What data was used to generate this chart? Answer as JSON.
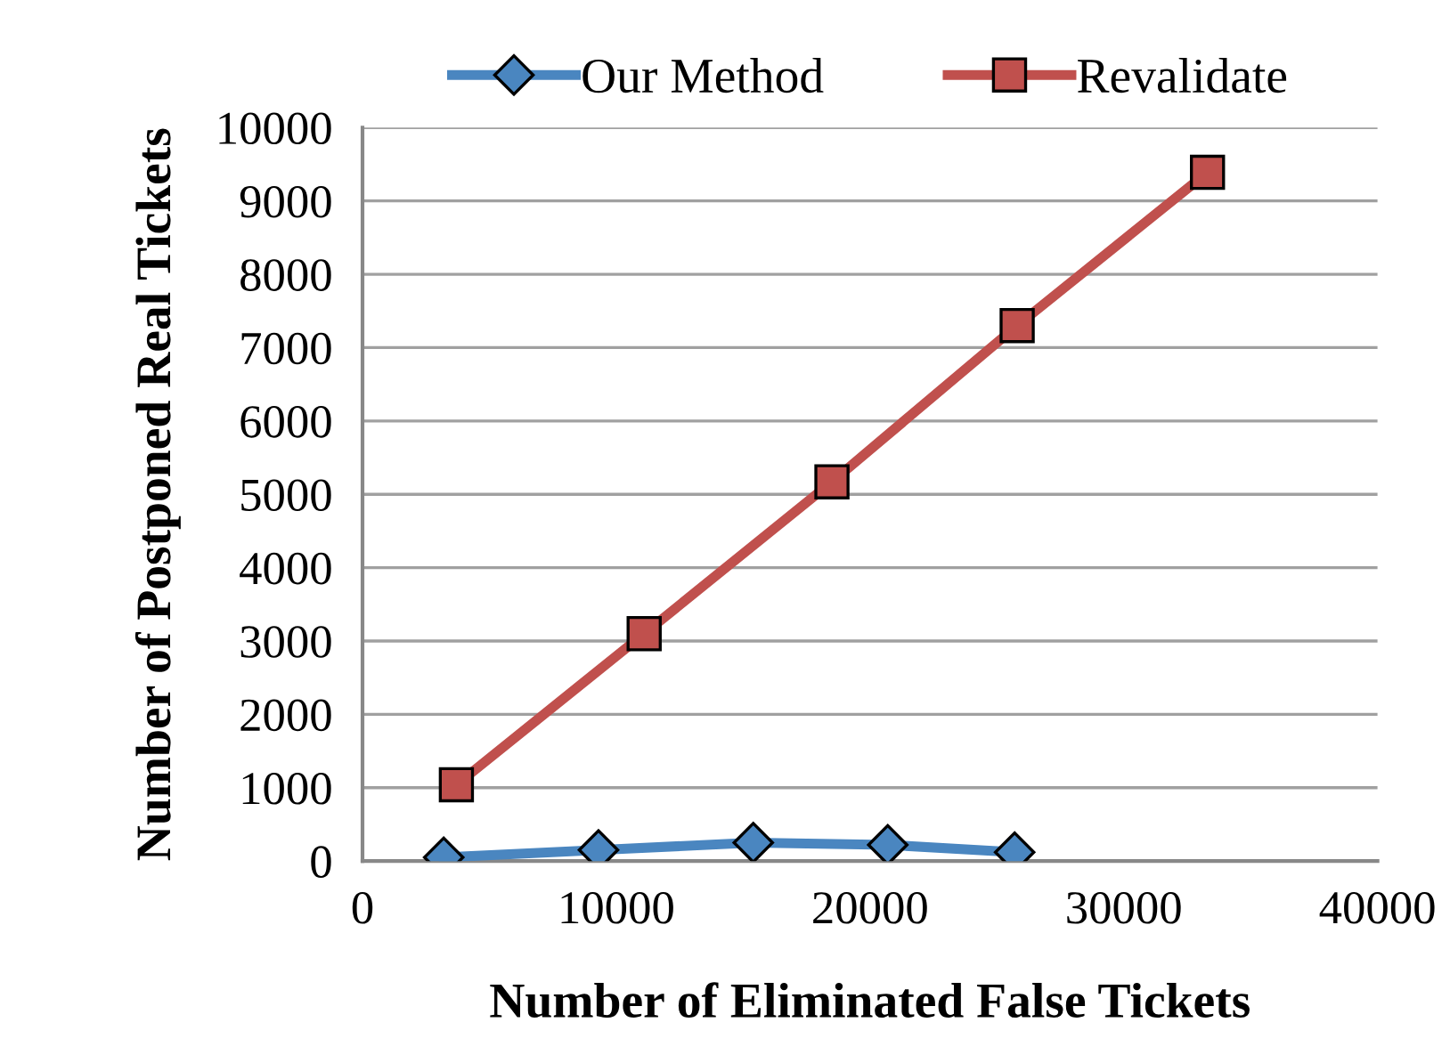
{
  "chart_data": {
    "type": "line",
    "xlabel": "Number of Eliminated False Tickets",
    "ylabel": "Number of Postponed Real Tickets",
    "xlim": [
      0,
      40000
    ],
    "xticks": [
      0,
      10000,
      20000,
      30000,
      40000
    ],
    "ylim": [
      0,
      10000
    ],
    "yticks": [
      0,
      1000,
      2000,
      3000,
      4000,
      5000,
      6000,
      7000,
      8000,
      9000,
      10000
    ],
    "grid": "y",
    "legend": "top",
    "series": [
      {
        "name": "Our Method",
        "color": "#4a86c0",
        "marker": "diamond",
        "x": [
          3200,
          9300,
          15400,
          20700,
          25700
        ],
        "values": [
          50,
          150,
          250,
          220,
          120
        ]
      },
      {
        "name": "Revalidate",
        "color": "#c0504d",
        "marker": "square",
        "x": [
          3700,
          11100,
          18500,
          25800,
          33300
        ],
        "values": [
          1040,
          3100,
          5170,
          7300,
          9390
        ]
      }
    ]
  }
}
